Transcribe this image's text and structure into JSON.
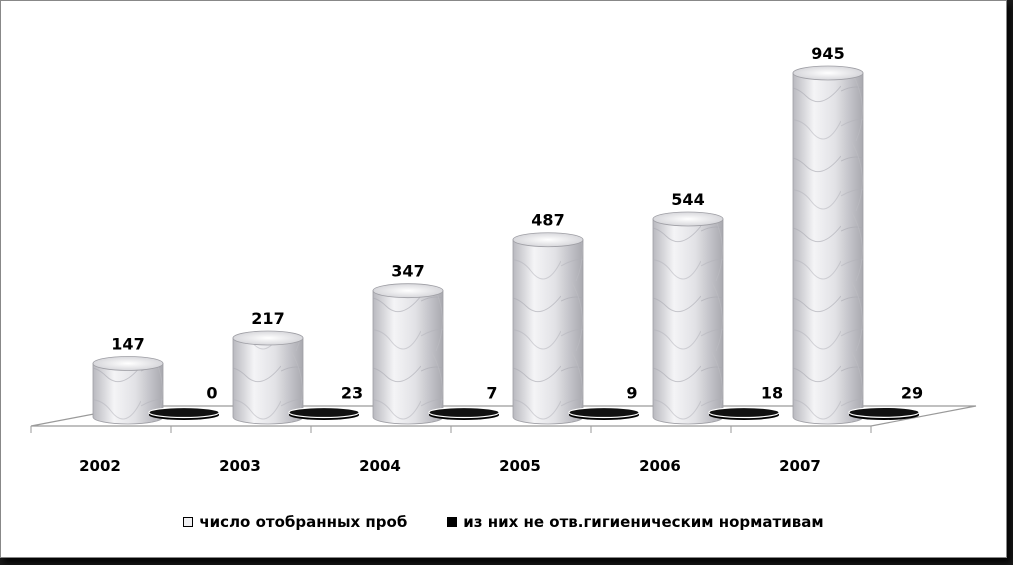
{
  "chart_data": {
    "type": "bar",
    "categories": [
      "2002",
      "2003",
      "2004",
      "2005",
      "2006",
      "2007"
    ],
    "series": [
      {
        "name": "число отобранных проб",
        "values": [
          147,
          217,
          347,
          487,
          544,
          945
        ],
        "color": "#e6e6ea"
      },
      {
        "name": "из них не отв.гигиеническим нормативам",
        "values": [
          0,
          23,
          7,
          9,
          18,
          29
        ],
        "color": "#000000"
      }
    ],
    "title": "",
    "xlabel": "",
    "ylabel": "",
    "ylim": [
      0,
      945
    ],
    "grid": false,
    "legend": "bottom",
    "style": "3d-cylinder"
  }
}
